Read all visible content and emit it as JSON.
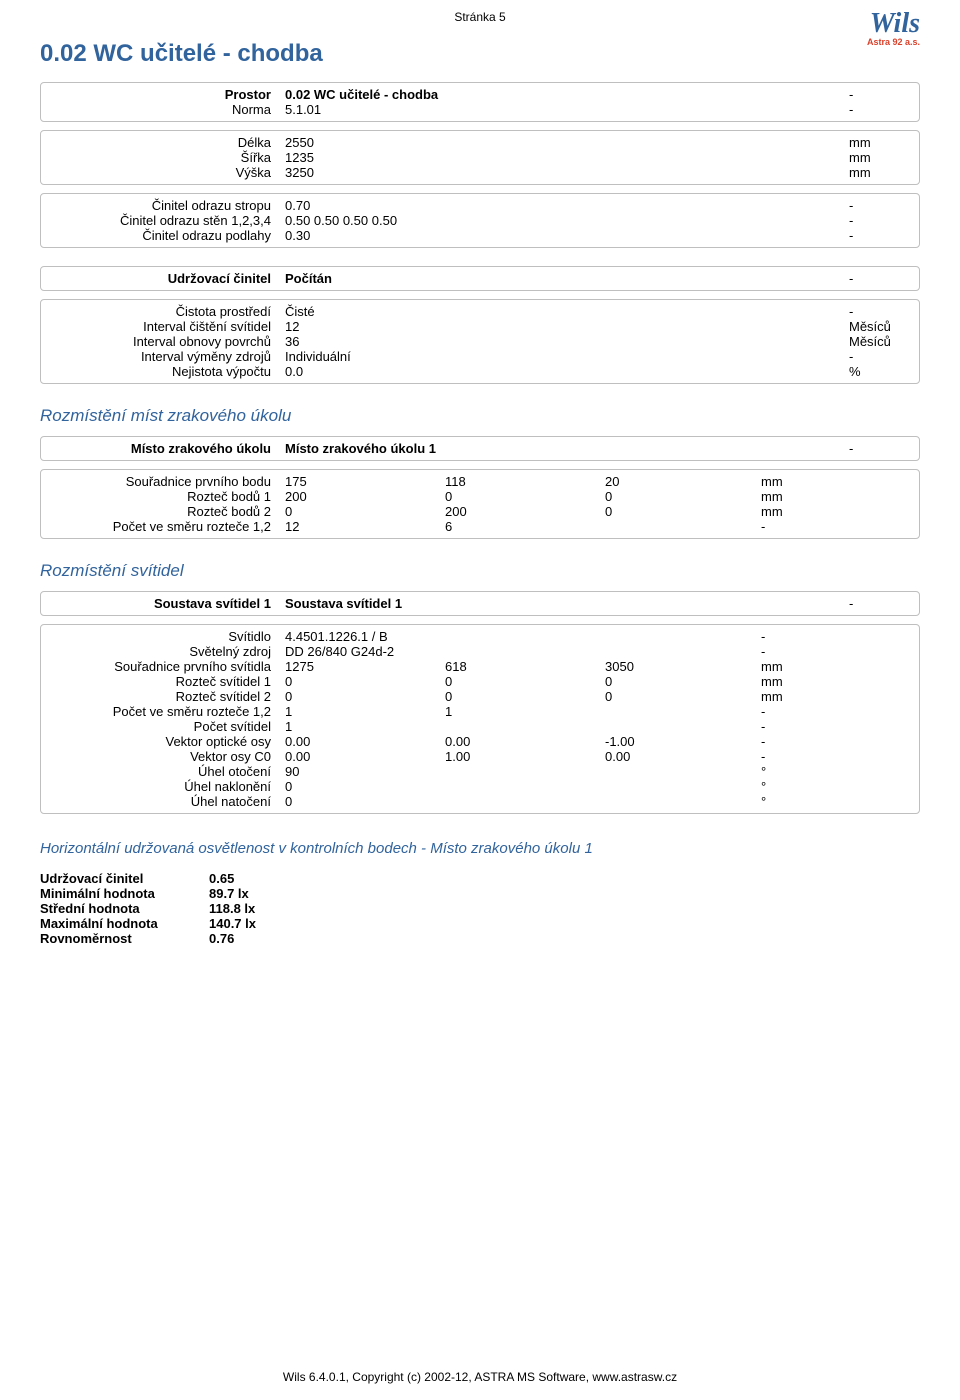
{
  "page_header": "Stránka 5",
  "logo": {
    "main": "Wils",
    "sub": "Astra 92 a.s."
  },
  "title": "0.02 WC učitelé - chodba",
  "general": {
    "rows": [
      {
        "label": "Prostor",
        "bold": true,
        "value": "0.02 WC učitelé - chodba",
        "value_bold": true,
        "unit": "-"
      },
      {
        "label": "Norma",
        "value": "5.1.01",
        "unit": "-"
      }
    ]
  },
  "dimensions": {
    "rows": [
      {
        "label": "Délka",
        "value": "2550",
        "unit": "mm"
      },
      {
        "label": "Šířka",
        "value": "1235",
        "unit": "mm"
      },
      {
        "label": "Výška",
        "value": "3250",
        "unit": "mm"
      }
    ]
  },
  "reflectance": {
    "rows": [
      {
        "label": "Činitel odrazu stropu",
        "value": "0.70",
        "unit": "-"
      },
      {
        "label": "Činitel odrazu stěn 1,2,3,4",
        "value": "0.50  0.50  0.50  0.50",
        "unit": "-"
      },
      {
        "label": "Činitel odrazu podlahy",
        "value": "0.30",
        "unit": "-"
      }
    ]
  },
  "maintenance_head": {
    "rows": [
      {
        "label": "Udržovací činitel",
        "bold": true,
        "value": "Počítán",
        "value_bold": true,
        "unit": "-"
      }
    ]
  },
  "maintenance": {
    "rows": [
      {
        "label": "Čistota prostředí",
        "value": "Čisté",
        "unit": "-"
      },
      {
        "label": "Interval čištění svítidel",
        "value": "12",
        "unit": "Měsíců"
      },
      {
        "label": "Interval obnovy povrchů",
        "value": "36",
        "unit": "Měsíců"
      },
      {
        "label": "Interval výměny zdrojů",
        "value": "Individuální",
        "unit": "-"
      },
      {
        "label": "Nejistota výpočtu",
        "value": "0.0",
        "unit": "%"
      }
    ]
  },
  "task_section_title": "Rozmístění míst zrakového úkolu",
  "task_head": {
    "rows": [
      {
        "label": "Místo zrakového úkolu",
        "bold": true,
        "value": "Místo zrakového úkolu 1",
        "value_bold": true,
        "unit": "-"
      }
    ]
  },
  "task": {
    "rows": [
      {
        "label": "Souřadnice prvního bodu",
        "c1": "175",
        "c2": "118",
        "c3": "20",
        "unit": "mm"
      },
      {
        "label": "Rozteč bodů 1",
        "c1": "200",
        "c2": "0",
        "c3": "0",
        "unit": "mm"
      },
      {
        "label": "Rozteč bodů 2",
        "c1": "0",
        "c2": "200",
        "c3": "0",
        "unit": "mm"
      },
      {
        "label": "Počet ve směru rozteče 1,2",
        "c1": "12",
        "c2": "6",
        "c3": "",
        "unit": "-"
      }
    ]
  },
  "lum_section_title": "Rozmístění svítidel",
  "lum_head": {
    "rows": [
      {
        "label": "Soustava svítidel 1",
        "bold": true,
        "value": "Soustava svítidel 1",
        "value_bold": true,
        "unit": "-"
      }
    ]
  },
  "lum": {
    "rows": [
      {
        "label": "Svítidlo",
        "c1": "4.4501.1226.1 / B",
        "c2": "",
        "c3": "",
        "unit": "-"
      },
      {
        "label": "Světelný zdroj",
        "c1": "DD 26/840 G24d-2",
        "c2": "",
        "c3": "",
        "unit": "-"
      },
      {
        "label": "Souřadnice prvního svítidla",
        "c1": "1275",
        "c2": "618",
        "c3": "3050",
        "unit": "mm"
      },
      {
        "label": "Rozteč svítidel 1",
        "c1": "0",
        "c2": "0",
        "c3": "0",
        "unit": "mm"
      },
      {
        "label": "Rozteč svítidel 2",
        "c1": "0",
        "c2": "0",
        "c3": "0",
        "unit": "mm"
      },
      {
        "label": "Počet ve směru rozteče 1,2",
        "c1": "1",
        "c2": "1",
        "c3": "",
        "unit": "-"
      },
      {
        "label": "Počet svítidel",
        "c1": "1",
        "c2": "",
        "c3": "",
        "unit": "-"
      },
      {
        "label": "Vektor optické osy",
        "c1": "0.00",
        "c2": "0.00",
        "c3": "-1.00",
        "unit": "-"
      },
      {
        "label": "Vektor osy C0",
        "c1": "0.00",
        "c2": "1.00",
        "c3": "0.00",
        "unit": "-"
      },
      {
        "label": "Úhel otočení",
        "c1": "90",
        "c2": "",
        "c3": "",
        "unit": "°"
      },
      {
        "label": "Úhel naklonění",
        "c1": "0",
        "c2": "",
        "c3": "",
        "unit": "°"
      },
      {
        "label": "Úhel natočení",
        "c1": "0",
        "c2": "",
        "c3": "",
        "unit": "°"
      }
    ]
  },
  "stats_title": "Horizontální udržovaná osvětlenost v kontrolních bodech - Místo zrakového úkolu 1",
  "stats": {
    "rows": [
      {
        "label": "Udržovací činitel",
        "value": "0.65"
      },
      {
        "label": "Minimální hodnota",
        "value": "89.7 lx"
      },
      {
        "label": "Střední hodnota",
        "value": "118.8 lx"
      },
      {
        "label": "Maximální hodnota",
        "value": "140.7 lx"
      },
      {
        "label": "Rovnoměrnost",
        "value": "0.76"
      }
    ]
  },
  "footer": "Wils 6.4.0.1, Copyright (c) 2002-12, ASTRA MS Software,  www.astrasw.cz"
}
